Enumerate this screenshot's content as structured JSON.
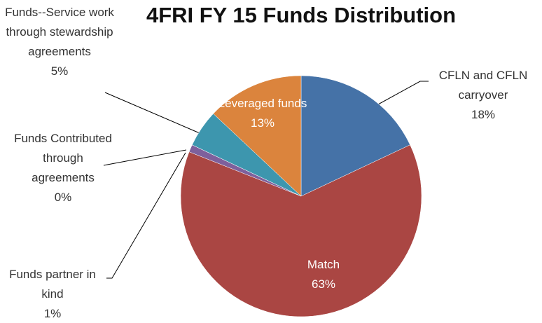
{
  "chart_data": {
    "type": "pie",
    "title": "4FRI FY 15 Funds Distribution",
    "categories": [
      "CFLN and CFLN carryover",
      "Match",
      "Funds partner in kind",
      "Funds Contributed through agreements",
      "Funds--Service work through stewardship agreements",
      "Leveraged funds"
    ],
    "values": [
      18,
      63,
      1,
      0,
      5,
      13
    ],
    "value_labels": [
      "18%",
      "63%",
      "1%",
      "0%",
      "5%",
      "13%"
    ],
    "colors": [
      "#4572a7",
      "#aa4643",
      "#7e609c",
      "#89a54e",
      "#3d96ae",
      "#db843d"
    ]
  }
}
